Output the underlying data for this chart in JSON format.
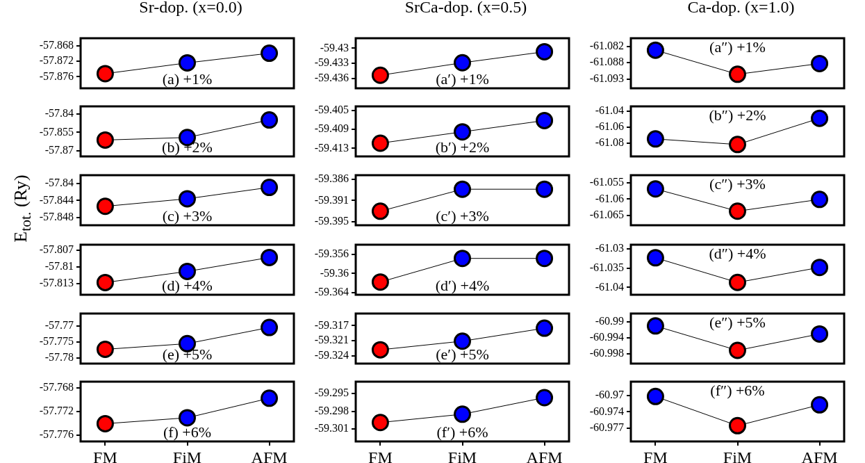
{
  "chart_data": [
    {
      "type": "line",
      "title": "Sr-dop. (x=0.0)",
      "categories": [
        null,
        null,
        null
      ],
      "values": [
        -57.8752,
        -57.8724,
        -57.8699
      ],
      "color": "#000000",
      "colors": [
        "#ff0000",
        "#0000ff",
        "#0000ff"
      ],
      "ylim": [
        -57.879,
        -57.866
      ],
      "yticks": [
        -57.868,
        -57.872,
        -57.876
      ],
      "annotations": [
        "(a) +1%"
      ],
      "marker": "circle",
      "tick_labels": "y"
    },
    {
      "type": "line",
      "title": "SrCa-dop. (x=0.5)",
      "categories": [
        null,
        null,
        null
      ],
      "values": [
        -59.4354,
        -59.4329,
        -59.4307
      ],
      "color": "#000000",
      "colors": [
        "#ff0000",
        "#0000ff",
        "#0000ff"
      ],
      "ylim": [
        -59.438,
        -59.428
      ],
      "yticks": [
        -59.43,
        -59.433,
        -59.436
      ],
      "annotations": [
        "(a′) +1%"
      ],
      "marker": "circle",
      "tick_labels": "y"
    },
    {
      "type": "line",
      "title": "Ca-dop. (x=1.0)",
      "categories": [
        null,
        null,
        null
      ],
      "values": [
        -61.0833,
        -61.0914,
        -61.0878
      ],
      "color": "#000000",
      "colors": [
        "#0000ff",
        "#ff0000",
        "#0000ff"
      ],
      "ylim": [
        -61.0961,
        -61.0793
      ],
      "yticks": [
        -61.082,
        {
          "value": -61.0875,
          "label": "-61.088"
        },
        -61.093
      ],
      "annotations": [
        "(a″) +1%"
      ],
      "marker": "circle",
      "tick_labels": "y"
    },
    {
      "type": "line",
      "categories": [
        null,
        null,
        null
      ],
      "values": [
        -57.8613,
        -57.8592,
        -57.8448
      ],
      "color": "#000000",
      "colors": [
        "#ff0000",
        "#0000ff",
        "#0000ff"
      ],
      "ylim": [
        -57.8748,
        -57.8336
      ],
      "yticks": [
        -57.84,
        -57.855,
        -57.87
      ],
      "annotations": [
        "(b) +2%"
      ],
      "marker": "circle",
      "tick_labels": "y"
    },
    {
      "type": "line",
      "categories": [
        null,
        null,
        null
      ],
      "values": [
        -59.4119,
        -59.4095,
        -59.4071
      ],
      "color": "#000000",
      "colors": [
        "#ff0000",
        "#0000ff",
        "#0000ff"
      ],
      "ylim": [
        -59.4147,
        -59.4041
      ],
      "yticks": [
        -59.405,
        -59.409,
        -59.413
      ],
      "annotations": [
        "(b′) +2%"
      ],
      "marker": "circle",
      "tick_labels": "y"
    },
    {
      "type": "line",
      "categories": [
        null,
        null,
        null
      ],
      "values": [
        -61.075,
        -61.082,
        -61.049
      ],
      "color": "#000000",
      "colors": [
        "#0000ff",
        "#ff0000",
        "#0000ff"
      ],
      "ylim": [
        -61.097,
        -61.034
      ],
      "yticks": [
        -61.04,
        -61.06,
        -61.08
      ],
      "annotations": [
        "(b″) +2%"
      ],
      "marker": "circle",
      "tick_labels": "y"
    },
    {
      "type": "line",
      "ylabel": "E$_{tot.}$ (Ry)",
      "categories": [
        null,
        null,
        null
      ],
      "values": [
        -57.8454,
        -57.8436,
        -57.8409
      ],
      "color": "#000000",
      "colors": [
        "#ff0000",
        "#0000ff",
        "#0000ff"
      ],
      "ylim": [
        -57.8499,
        -57.838
      ],
      "yticks": [
        -57.84,
        -57.844,
        -57.848
      ],
      "annotations": [
        "(c) +3%"
      ],
      "marker": "circle",
      "tick_labels": "y"
    },
    {
      "type": "line",
      "categories": [
        null,
        null,
        null
      ],
      "values": [
        -59.3928,
        -59.3881,
        -59.3881
      ],
      "color": "#000000",
      "colors": [
        "#ff0000",
        "#0000ff",
        "#0000ff"
      ],
      "ylim": [
        -59.3958,
        -59.3851
      ],
      "yticks": [
        -59.386,
        {
          "value": -59.3905,
          "label": "-59.391"
        },
        -59.395
      ],
      "annotations": [
        "(c′) +3%"
      ],
      "marker": "circle",
      "tick_labels": "y"
    },
    {
      "type": "line",
      "categories": [
        null,
        null,
        null
      ],
      "values": [
        -61.0569,
        -61.0637,
        -61.0601
      ],
      "color": "#000000",
      "colors": [
        "#0000ff",
        "#ff0000",
        "#0000ff"
      ],
      "ylim": [
        -61.068,
        -61.0527
      ],
      "yticks": [
        -61.055,
        -61.06,
        -61.065
      ],
      "annotations": [
        "(c″) +3%"
      ],
      "marker": "circle",
      "tick_labels": "y"
    },
    {
      "type": "line",
      "categories": [
        null,
        null,
        null
      ],
      "values": [
        -57.8128,
        -57.8108,
        -57.8083
      ],
      "color": "#000000",
      "colors": [
        "#ff0000",
        "#0000ff",
        "#0000ff"
      ],
      "ylim": [
        -57.815,
        -57.806
      ],
      "yticks": [
        -57.807,
        -57.81,
        -57.813
      ],
      "annotations": [
        "(d) +4%"
      ],
      "marker": "circle",
      "tick_labels": "y"
    },
    {
      "type": "line",
      "categories": [
        null,
        null,
        null
      ],
      "values": [
        -59.3618,
        -59.3568,
        -59.3568
      ],
      "color": "#000000",
      "colors": [
        "#ff0000",
        "#0000ff",
        "#0000ff"
      ],
      "ylim": [
        -59.3645,
        -59.3539
      ],
      "yticks": [
        -59.356,
        -59.36,
        -59.364
      ],
      "annotations": [
        "(d′) +4%"
      ],
      "marker": "circle",
      "tick_labels": "y"
    },
    {
      "type": "line",
      "categories": [
        null,
        null,
        null
      ],
      "values": [
        -61.0323,
        -61.0387,
        -61.0348
      ],
      "color": "#000000",
      "colors": [
        "#0000ff",
        "#ff0000",
        "#0000ff"
      ],
      "ylim": [
        -61.0419,
        -61.0289
      ],
      "yticks": [
        -61.03,
        -61.035,
        -61.04
      ],
      "annotations": [
        "(d″) +4%"
      ],
      "marker": "circle",
      "tick_labels": "y"
    },
    {
      "type": "line",
      "categories": [
        null,
        null,
        null
      ],
      "values": [
        -57.7773,
        -57.7755,
        -57.7704
      ],
      "color": "#000000",
      "colors": [
        "#ff0000",
        "#0000ff",
        "#0000ff"
      ],
      "ylim": [
        -57.7818,
        -57.766
      ],
      "yticks": [
        -57.77,
        -57.775,
        -57.78
      ],
      "annotations": [
        "(e) +5%"
      ],
      "marker": "circle",
      "tick_labels": "y"
    },
    {
      "type": "line",
      "categories": [
        null,
        null,
        null
      ],
      "values": [
        -59.3226,
        -59.3206,
        -59.3176
      ],
      "color": "#000000",
      "colors": [
        "#ff0000",
        "#0000ff",
        "#0000ff"
      ],
      "ylim": [
        -59.3258,
        -59.3142
      ],
      "yticks": [
        -59.317,
        {
          "value": -59.3205,
          "label": "-59.321"
        },
        -59.324
      ],
      "annotations": [
        "(e′) +5%"
      ],
      "marker": "circle",
      "tick_labels": "y"
    },
    {
      "type": "line",
      "categories": [
        null,
        null,
        null
      ],
      "values": [
        -60.991,
        -60.9971,
        -60.993
      ],
      "color": "#000000",
      "colors": [
        "#0000ff",
        "#ff0000",
        "#0000ff"
      ],
      "ylim": [
        -61.0004,
        -60.9879
      ],
      "yticks": [
        -60.99,
        -60.994,
        -60.998
      ],
      "annotations": [
        "(e″) +5%"
      ],
      "marker": "circle",
      "tick_labels": "y"
    },
    {
      "type": "line",
      "categories": [
        "FM",
        "FiM",
        "AFM"
      ],
      "values": [
        -57.7741,
        -57.7731,
        -57.7698
      ],
      "color": "#000000",
      "colors": [
        "#ff0000",
        "#0000ff",
        "#0000ff"
      ],
      "ylim": [
        -57.7771,
        -57.767
      ],
      "yticks": [
        -57.768,
        -57.772,
        -57.776
      ],
      "annotations": [
        "(f) +6%"
      ],
      "marker": "circle"
    },
    {
      "type": "line",
      "categories": [
        "FM",
        "FiM",
        "AFM"
      ],
      "values": [
        -59.2999,
        -59.2985,
        -59.2957
      ],
      "color": "#000000",
      "colors": [
        "#ff0000",
        "#0000ff",
        "#0000ff"
      ],
      "ylim": [
        -59.3031,
        -59.293
      ],
      "yticks": [
        -59.295,
        -59.298,
        -59.301
      ],
      "annotations": [
        "(f′) +6%"
      ],
      "marker": "circle"
    },
    {
      "type": "line",
      "categories": [
        "FM",
        "FiM",
        "AFM"
      ],
      "values": [
        -60.9702,
        -60.9765,
        -60.972
      ],
      "color": "#000000",
      "colors": [
        "#0000ff",
        "#ff0000",
        "#0000ff"
      ],
      "ylim": [
        -60.9799,
        -60.967
      ],
      "yticks": [
        -60.97,
        {
          "value": -60.9735,
          "label": "-60.974"
        },
        -60.977
      ],
      "annotations": [
        "(f″) +6%"
      ],
      "marker": "circle"
    }
  ]
}
